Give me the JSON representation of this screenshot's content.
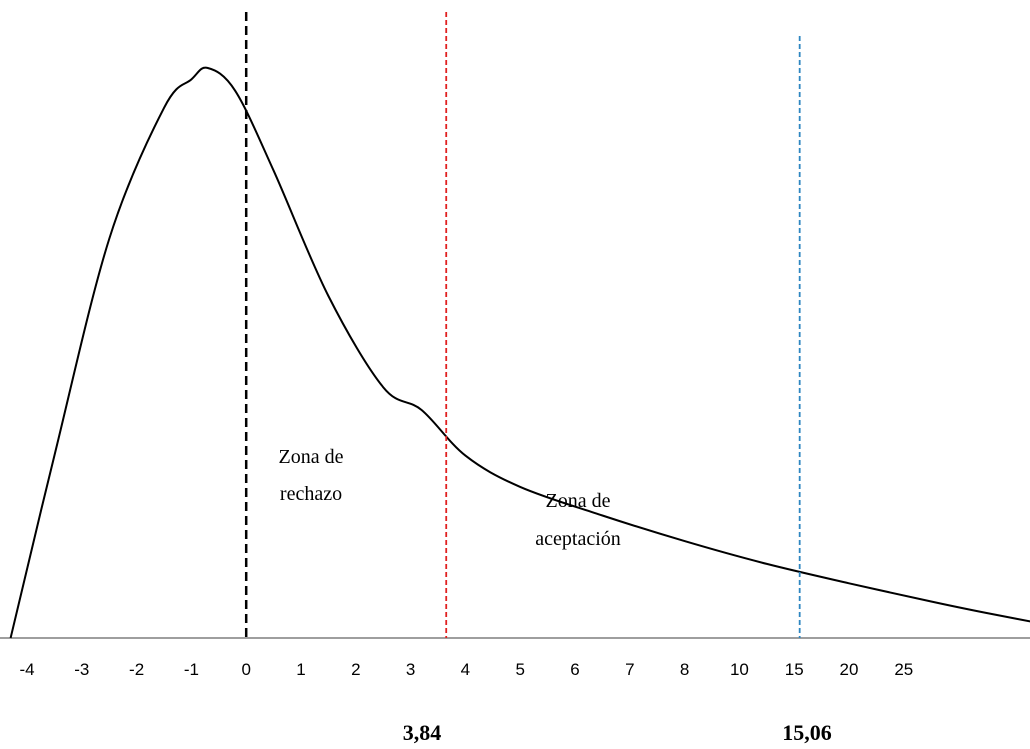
{
  "chart_data": {
    "type": "line",
    "title": "",
    "xlabel": "",
    "ylabel": "",
    "x_tick_labels": [
      "-4",
      "-3",
      "-2",
      "-1",
      "0",
      "1",
      "2",
      "3",
      "4",
      "5",
      "6",
      "7",
      "8",
      "10",
      "15",
      "20",
      "25"
    ],
    "series": [
      {
        "values_x_tick_index": [
          -0.3,
          0.5,
          1.5,
          2.5,
          3.0,
          3.3,
          3.8,
          4.5,
          5.5,
          6.5,
          7.2,
          8.0,
          9.0,
          10.5,
          12.0,
          13.5,
          15.0,
          16.5,
          17.5,
          18.8
        ],
        "values_relative_height": [
          0.0,
          0.32,
          0.7,
          0.93,
          0.98,
          1.0,
          0.96,
          0.82,
          0.6,
          0.44,
          0.4,
          0.32,
          0.265,
          0.215,
          0.17,
          0.13,
          0.096,
          0.064,
          0.044,
          0.02
        ]
      }
    ],
    "reference_lines": [
      {
        "x_tick_index": 4.0,
        "color": "#000000",
        "style": "dashed"
      },
      {
        "x_tick_index": 7.65,
        "color": "#e02020",
        "style": "dashed",
        "label": "3,84"
      },
      {
        "x_tick_index": 14.1,
        "color": "#2e86c1",
        "style": "dashed",
        "label": "15,06"
      }
    ],
    "annotations": [
      {
        "lines": [
          "Zona de",
          "rechazo"
        ]
      },
      {
        "lines": [
          "Zona de",
          "aceptación"
        ]
      }
    ],
    "grid": false,
    "legend": "none"
  }
}
